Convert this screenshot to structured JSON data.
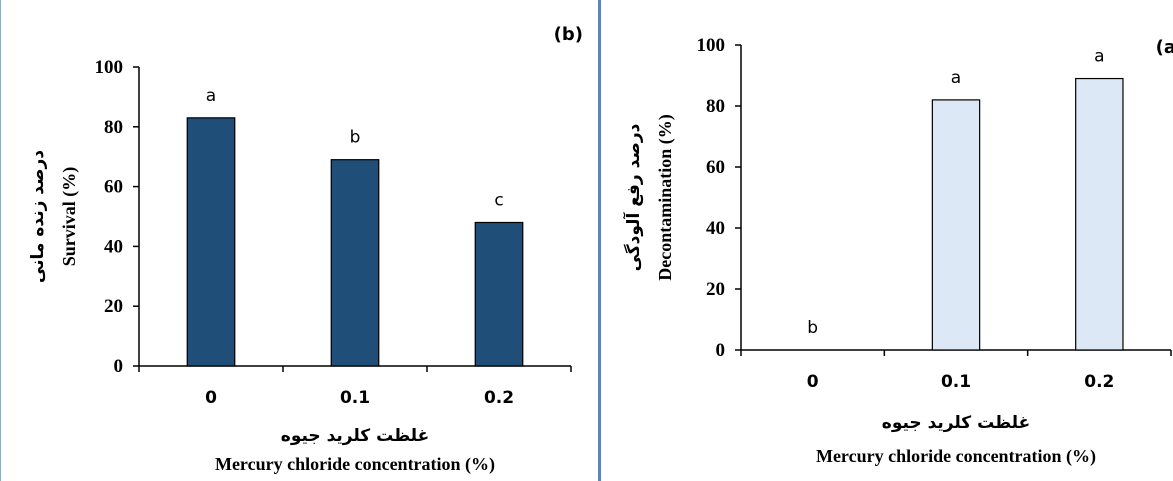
{
  "chart_data": [
    {
      "type": "bar",
      "panel_label": "(b)",
      "categories": [
        "0",
        "0.1",
        "0.2"
      ],
      "values": [
        83,
        69,
        48
      ],
      "significance_letters": [
        "a",
        "b",
        "c"
      ],
      "ylabel_fa": "درصد زنده مانی",
      "ylabel_en": "Survival (%)",
      "xlabel_fa": "غلظت کلرید جیوه",
      "xlabel_en": "Mercury chloride concentration (%)",
      "ylim": [
        0,
        100
      ],
      "yticks": [
        "0",
        "20",
        "40",
        "60",
        "80",
        "100"
      ],
      "bar_color": "#1f4e79",
      "grid": false
    },
    {
      "type": "bar",
      "panel_label": "(a",
      "categories": [
        "0",
        "0.1",
        "0.2"
      ],
      "values": [
        0,
        82,
        89
      ],
      "significance_letters": [
        "b",
        "a",
        "a"
      ],
      "ylabel_fa": "درصد رفع آلودگی",
      "ylabel_en": "Decontamination (%)",
      "xlabel_fa": "غلظت کلرید جیوه",
      "xlabel_en": "Mercury chloride concentration (%)",
      "ylim": [
        0,
        100
      ],
      "yticks": [
        "0",
        "20",
        "40",
        "60",
        "80",
        "100"
      ],
      "bar_color": "#dce8f5",
      "grid": false
    }
  ]
}
